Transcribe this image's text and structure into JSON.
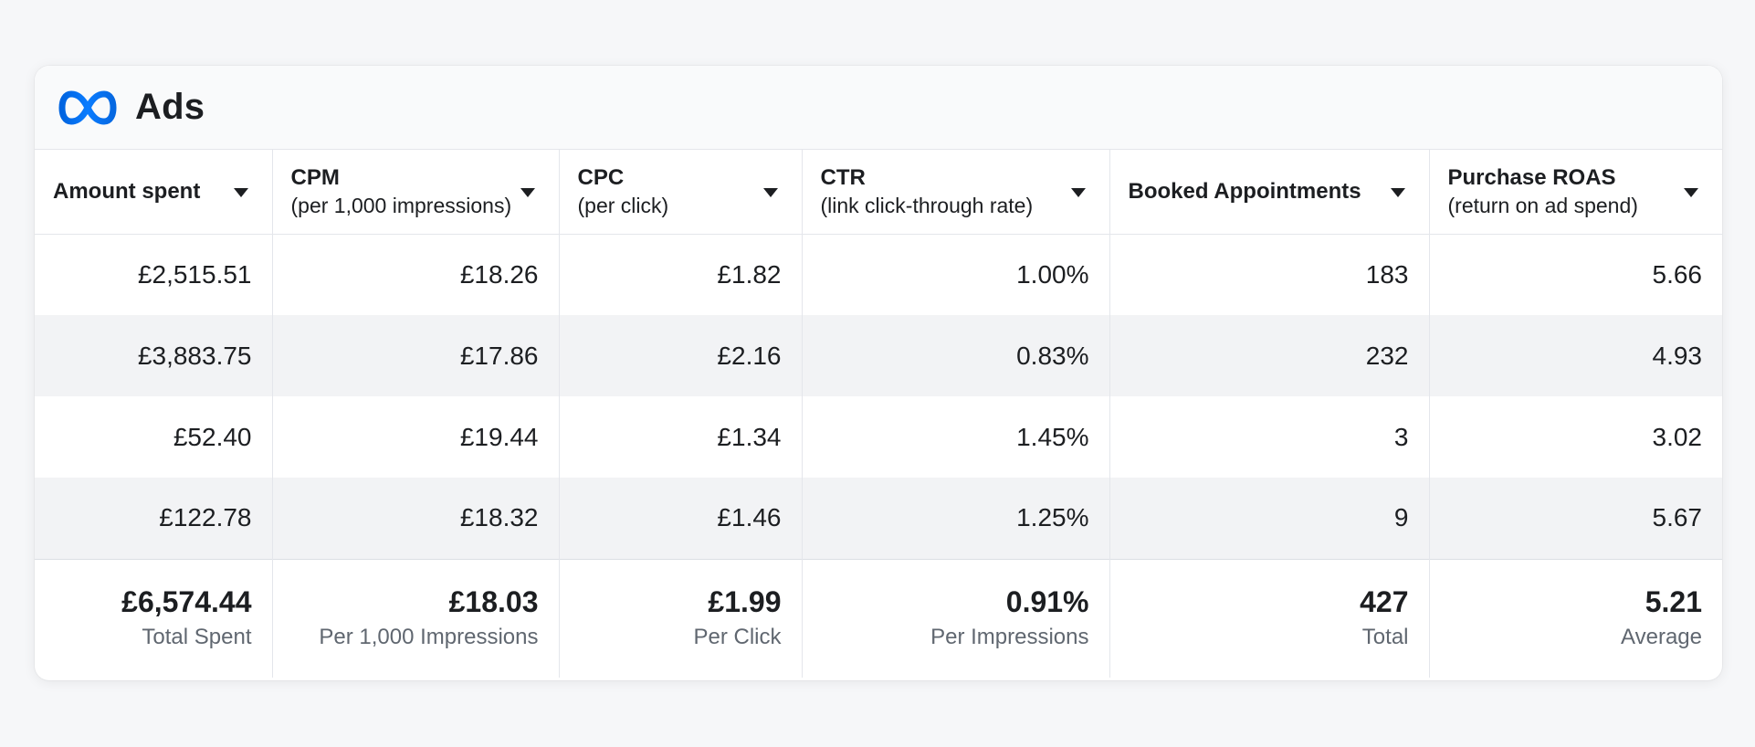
{
  "header": {
    "logo_icon": "meta-infinity-icon",
    "brand": "Ads",
    "accent": "#0866ff"
  },
  "table": {
    "columns": [
      {
        "title": "Amount spent",
        "subtitle": ""
      },
      {
        "title": "CPM",
        "subtitle": "(per 1,000 impressions)"
      },
      {
        "title": "CPC",
        "subtitle": "(per click)"
      },
      {
        "title": "CTR",
        "subtitle": "(link click-through rate)"
      },
      {
        "title": "Booked Appointments",
        "subtitle": ""
      },
      {
        "title": "Purchase ROAS",
        "subtitle": "(return on ad spend)"
      }
    ],
    "rows": [
      [
        "£2,515.51",
        "£18.26",
        "£1.82",
        "1.00%",
        "183",
        "5.66"
      ],
      [
        "£3,883.75",
        "£17.86",
        "£2.16",
        "0.83%",
        "232",
        "4.93"
      ],
      [
        "£52.40",
        "£19.44",
        "£1.34",
        "1.45%",
        "3",
        "3.02"
      ],
      [
        "£122.78",
        "£18.32",
        "£1.46",
        "1.25%",
        "9",
        "5.67"
      ]
    ],
    "totals": [
      {
        "value": "£6,574.44",
        "label": "Total Spent"
      },
      {
        "value": "£18.03",
        "label": "Per 1,000 Impressions"
      },
      {
        "value": "£1.99",
        "label": "Per Click"
      },
      {
        "value": "0.91%",
        "label": "Per Impressions"
      },
      {
        "value": "427",
        "label": "Total"
      },
      {
        "value": "5.21",
        "label": "Average"
      }
    ]
  }
}
